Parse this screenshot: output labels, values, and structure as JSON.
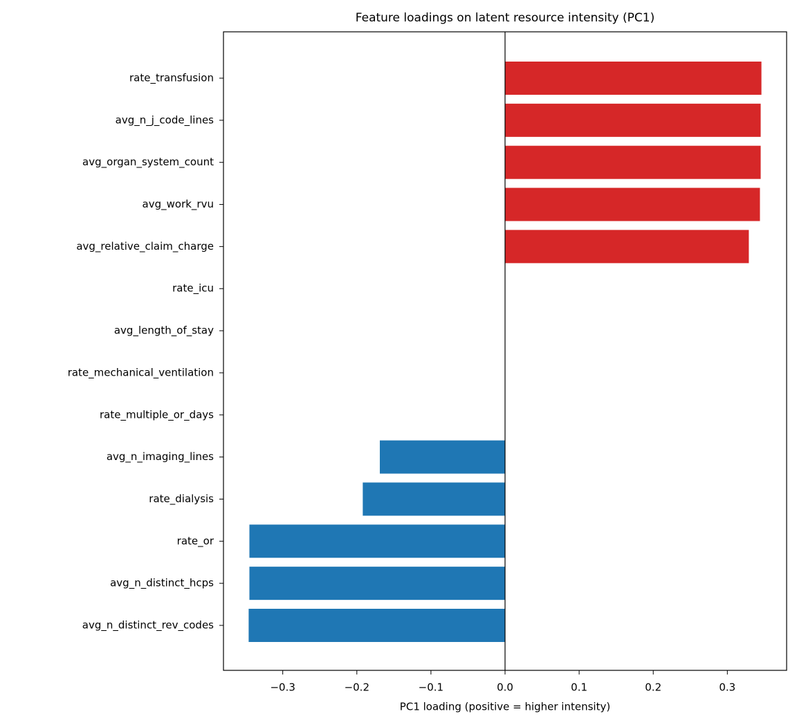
{
  "chart_data": {
    "type": "barh",
    "title": "Feature loadings on latent resource intensity (PC1)",
    "x_label": "PC1 loading (positive = higher intensity)",
    "categories": [
      "rate_transfusion",
      "avg_n_j_code_lines",
      "avg_organ_system_count",
      "avg_work_rvu",
      "avg_relative_claim_charge",
      "rate_icu",
      "avg_length_of_stay",
      "rate_mechanical_ventilation",
      "rate_multiple_or_days",
      "avg_n_imaging_lines",
      "rate_dialysis",
      "rate_or",
      "avg_n_distinct_hcps",
      "avg_n_distinct_rev_codes"
    ],
    "values": [
      0.346,
      0.345,
      0.345,
      0.344,
      0.329,
      0,
      0,
      0,
      0,
      -0.169,
      -0.192,
      -0.345,
      -0.345,
      -0.346
    ],
    "positive_color": "#d62728",
    "negative_color": "#1f77b4",
    "xlim": [
      -0.38,
      0.38
    ],
    "xticks": [
      {
        "value": -0.3,
        "label": "−0.3"
      },
      {
        "value": -0.2,
        "label": "−0.2"
      },
      {
        "value": -0.1,
        "label": "−0.1"
      },
      {
        "value": 0,
        "label": "0.0"
      },
      0.1,
      0.2,
      0.3
    ],
    "grid": false
  }
}
